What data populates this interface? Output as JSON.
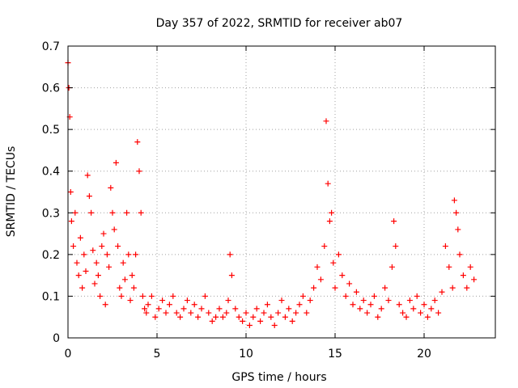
{
  "chart_data": {
    "type": "scatter",
    "title": "Day 357 of 2022, SRMTID for receiver ab07",
    "xlabel": "GPS time / hours",
    "ylabel": "SRMTID / TECUs",
    "xlim": [
      0,
      24
    ],
    "ylim": [
      0,
      0.7
    ],
    "xticks": [
      0,
      5,
      10,
      15,
      20
    ],
    "xtick_labels": [
      "0",
      "5",
      "10",
      "15",
      "20"
    ],
    "yticks": [
      0,
      0.1,
      0.2,
      0.3,
      0.4,
      0.5,
      0.6,
      0.7
    ],
    "ytick_labels": [
      "0",
      "0.1",
      "0.2",
      "0.3",
      "0.4",
      "0.5",
      "0.6",
      "0.7"
    ],
    "grid": true,
    "marker": "+",
    "color": "#ff0000",
    "series": [
      {
        "name": "SRMTID",
        "x": [
          0.0,
          0.05,
          0.1,
          0.15,
          0.2,
          0.3,
          0.4,
          0.5,
          0.6,
          0.7,
          0.8,
          0.9,
          1.0,
          1.1,
          1.2,
          1.3,
          1.4,
          1.5,
          1.6,
          1.7,
          1.8,
          1.9,
          2.0,
          2.1,
          2.2,
          2.3,
          2.4,
          2.5,
          2.6,
          2.7,
          2.8,
          2.9,
          3.0,
          3.1,
          3.2,
          3.3,
          3.4,
          3.5,
          3.6,
          3.7,
          3.8,
          3.9,
          4.0,
          4.1,
          4.2,
          4.3,
          4.4,
          4.5,
          4.7,
          4.9,
          5.1,
          5.3,
          5.5,
          5.7,
          5.9,
          6.1,
          6.3,
          6.5,
          6.7,
          6.9,
          7.1,
          7.3,
          7.5,
          7.7,
          7.9,
          8.1,
          8.3,
          8.5,
          8.7,
          8.9,
          9.0,
          9.1,
          9.2,
          9.4,
          9.6,
          9.8,
          10.0,
          10.2,
          10.4,
          10.6,
          10.8,
          11.0,
          11.2,
          11.4,
          11.6,
          11.8,
          12.0,
          12.2,
          12.4,
          12.6,
          12.8,
          13.0,
          13.2,
          13.4,
          13.6,
          13.8,
          14.0,
          14.2,
          14.4,
          14.5,
          14.6,
          14.7,
          14.8,
          14.9,
          15.0,
          15.2,
          15.4,
          15.6,
          15.8,
          16.0,
          16.2,
          16.4,
          16.6,
          16.8,
          17.0,
          17.2,
          17.4,
          17.6,
          17.8,
          18.0,
          18.2,
          18.3,
          18.4,
          18.6,
          18.8,
          19.0,
          19.2,
          19.4,
          19.6,
          19.8,
          20.0,
          20.2,
          20.4,
          20.6,
          20.8,
          21.0,
          21.2,
          21.4,
          21.6,
          21.7,
          21.8,
          21.9,
          22.0,
          22.2,
          22.4,
          22.6,
          22.8
        ],
        "y": [
          0.66,
          0.6,
          0.53,
          0.35,
          0.28,
          0.22,
          0.3,
          0.18,
          0.15,
          0.24,
          0.12,
          0.2,
          0.16,
          0.39,
          0.34,
          0.3,
          0.21,
          0.13,
          0.18,
          0.15,
          0.1,
          0.22,
          0.25,
          0.08,
          0.2,
          0.17,
          0.36,
          0.3,
          0.26,
          0.42,
          0.22,
          0.12,
          0.1,
          0.18,
          0.14,
          0.3,
          0.2,
          0.09,
          0.15,
          0.12,
          0.2,
          0.47,
          0.4,
          0.3,
          0.1,
          0.07,
          0.06,
          0.08,
          0.1,
          0.05,
          0.07,
          0.09,
          0.06,
          0.08,
          0.1,
          0.06,
          0.05,
          0.07,
          0.09,
          0.06,
          0.08,
          0.05,
          0.07,
          0.1,
          0.06,
          0.04,
          0.05,
          0.07,
          0.05,
          0.06,
          0.09,
          0.2,
          0.15,
          0.07,
          0.05,
          0.04,
          0.06,
          0.03,
          0.05,
          0.07,
          0.04,
          0.06,
          0.08,
          0.05,
          0.03,
          0.06,
          0.09,
          0.05,
          0.07,
          0.04,
          0.06,
          0.08,
          0.1,
          0.06,
          0.09,
          0.12,
          0.17,
          0.14,
          0.22,
          0.52,
          0.37,
          0.28,
          0.3,
          0.18,
          0.12,
          0.2,
          0.15,
          0.1,
          0.13,
          0.08,
          0.11,
          0.07,
          0.09,
          0.06,
          0.08,
          0.1,
          0.05,
          0.07,
          0.12,
          0.09,
          0.17,
          0.28,
          0.22,
          0.08,
          0.06,
          0.05,
          0.09,
          0.07,
          0.1,
          0.06,
          0.08,
          0.05,
          0.07,
          0.09,
          0.06,
          0.11,
          0.22,
          0.17,
          0.12,
          0.33,
          0.3,
          0.26,
          0.2,
          0.15,
          0.12,
          0.17,
          0.14
        ]
      }
    ]
  }
}
